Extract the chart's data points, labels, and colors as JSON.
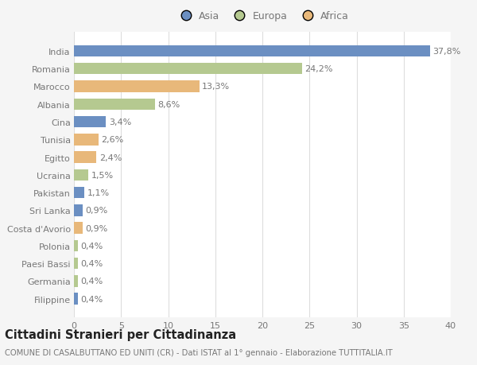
{
  "categories": [
    "Filippine",
    "Germania",
    "Paesi Bassi",
    "Polonia",
    "Costa d'Avorio",
    "Sri Lanka",
    "Pakistan",
    "Ucraina",
    "Egitto",
    "Tunisia",
    "Cina",
    "Albania",
    "Marocco",
    "Romania",
    "India"
  ],
  "values": [
    0.4,
    0.4,
    0.4,
    0.4,
    0.9,
    0.9,
    1.1,
    1.5,
    2.4,
    2.6,
    3.4,
    8.6,
    13.3,
    24.2,
    37.8
  ],
  "labels": [
    "0,4%",
    "0,4%",
    "0,4%",
    "0,4%",
    "0,9%",
    "0,9%",
    "1,1%",
    "1,5%",
    "2,4%",
    "2,6%",
    "3,4%",
    "8,6%",
    "13,3%",
    "24,2%",
    "37,8%"
  ],
  "colors": [
    "#6b8fc2",
    "#b5c990",
    "#b5c990",
    "#b5c990",
    "#e8b87a",
    "#6b8fc2",
    "#6b8fc2",
    "#b5c990",
    "#e8b87a",
    "#e8b87a",
    "#6b8fc2",
    "#b5c990",
    "#e8b87a",
    "#b5c990",
    "#6b8fc2"
  ],
  "legend_labels": [
    "Asia",
    "Europa",
    "Africa"
  ],
  "legend_colors": [
    "#6b8fc2",
    "#b5c990",
    "#e8b87a"
  ],
  "xlim": [
    0,
    40
  ],
  "xticks": [
    0,
    5,
    10,
    15,
    20,
    25,
    30,
    35,
    40
  ],
  "title": "Cittadini Stranieri per Cittadinanza",
  "subtitle": "COMUNE DI CASALBUTTANO ED UNITI (CR) - Dati ISTAT al 1° gennaio - Elaborazione TUTTITALIA.IT",
  "bg_color": "#f5f5f5",
  "plot_bg_color": "#ffffff",
  "grid_color": "#dddddd",
  "text_color": "#777777",
  "title_color": "#222222",
  "label_fontsize": 8,
  "tick_fontsize": 8,
  "title_fontsize": 10.5,
  "subtitle_fontsize": 7.2
}
